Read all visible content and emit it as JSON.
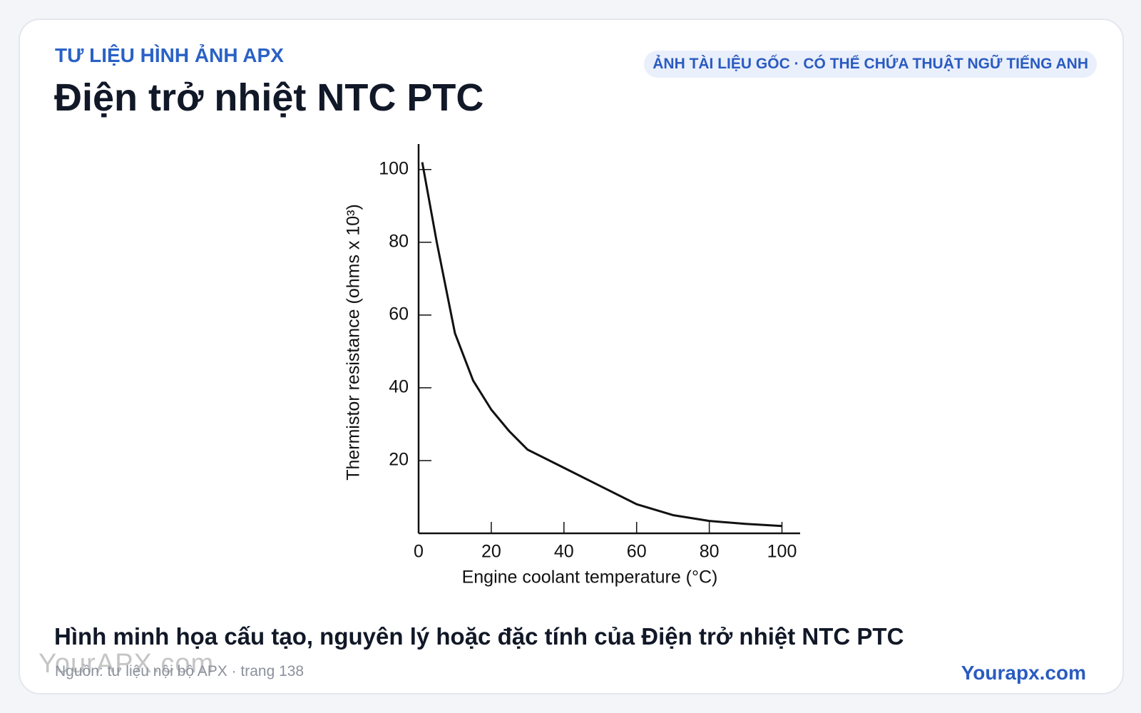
{
  "header": {
    "kicker": "TƯ LIỆU HÌNH ẢNH APX",
    "title": "Điện trở nhiệt NTC PTC",
    "badge": "ẢNH TÀI LIỆU GỐC · CÓ THỂ CHỨA THUẬT NGỮ TIẾNG ANH"
  },
  "chart_data": {
    "type": "line",
    "x_label": "Engine coolant temperature (°C)",
    "y_label": "Thermistor resistance (ohms x 10³)",
    "x": [
      1,
      5,
      10,
      15,
      20,
      25,
      30,
      40,
      50,
      60,
      70,
      80,
      90,
      100
    ],
    "series": [
      {
        "color": "#111111",
        "values": [
          102,
          80,
          55,
          42,
          34,
          28,
          23,
          18,
          13,
          8,
          5,
          3.4,
          2.6,
          2
        ]
      }
    ],
    "xlim": [
      0,
      105
    ],
    "xticks": [
      0,
      20,
      40,
      60,
      80,
      100
    ],
    "ylim": [
      0,
      107
    ],
    "yticks": [
      20,
      40,
      60,
      80,
      100
    ]
  },
  "footer": {
    "caption": "Hình minh họa cấu tạo, nguyên lý hoặc đặc tính của Điện trở nhiệt NTC PTC",
    "source": "Nguồn: tư liệu nội bộ APX · trang 138",
    "watermark": "YourAPX.com",
    "brand": "Yourapx.com"
  }
}
